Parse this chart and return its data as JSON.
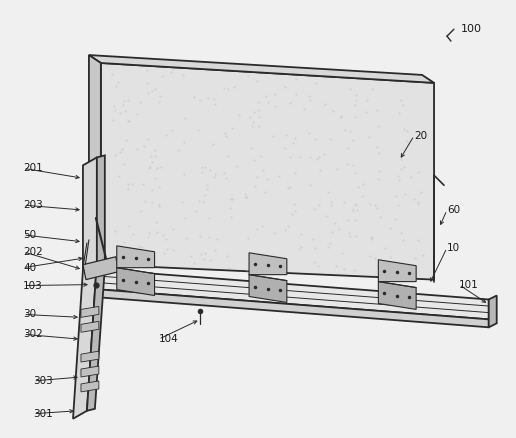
{
  "bg_color": "#f0f0f0",
  "line_color": "#2a2a2a",
  "label_color": "#1a1a1a",
  "lw_main": 1.3,
  "lw_thin": 0.7,
  "panel_face": "#e2e2e2",
  "panel_edge": "#d0d0d0",
  "platform_top": "#e8e8e8",
  "platform_bot": "#d0d0d0",
  "pole_face": "#d8d8d8",
  "pole_side": "#b8b8b8",
  "hinge_fc": "#c8c8c8"
}
